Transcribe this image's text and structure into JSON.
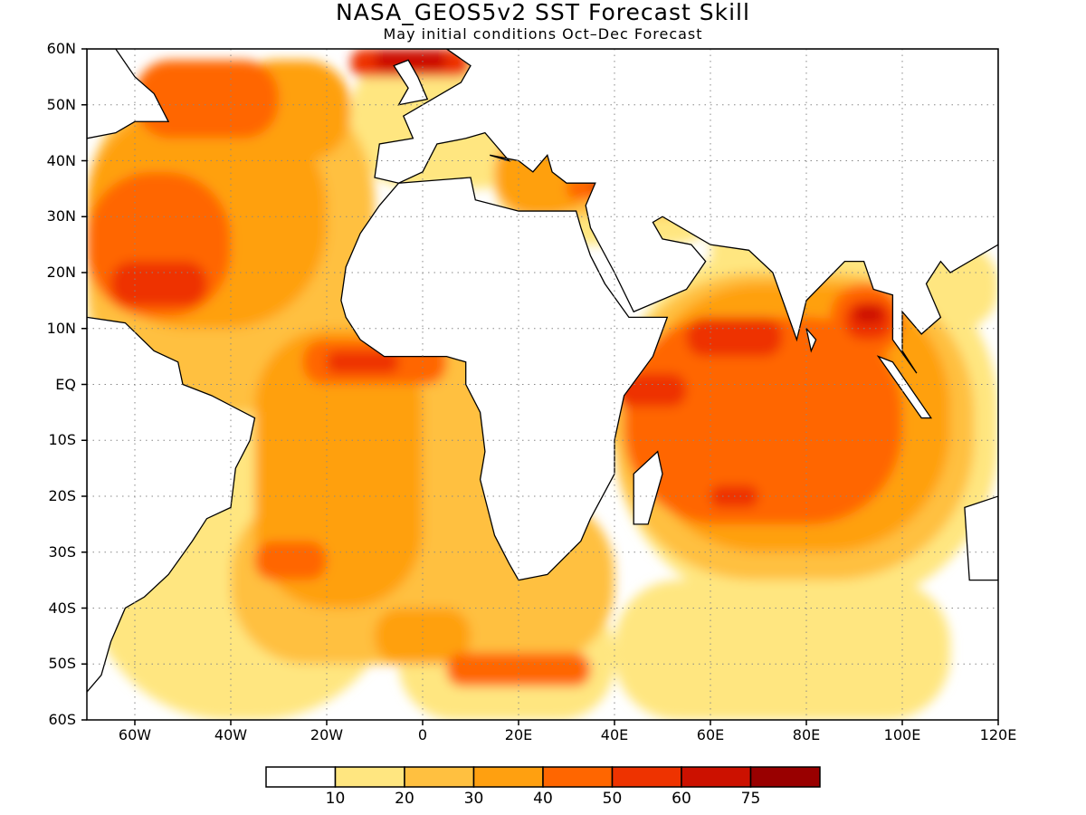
{
  "title": "NASA_GEOS5v2 SST Forecast Skill",
  "subtitle": "May initial conditions  Oct–Dec Forecast",
  "axes": {
    "lat_labels": [
      "60N",
      "50N",
      "40N",
      "30N",
      "20N",
      "10N",
      "EQ",
      "10S",
      "20S",
      "30S",
      "40S",
      "50S",
      "60S"
    ],
    "lon_labels": [
      "60W",
      "40W",
      "20W",
      "0",
      "20E",
      "40E",
      "60E",
      "80E",
      "100E",
      "120E"
    ]
  },
  "colorbar": {
    "labels": [
      "10",
      "20",
      "30",
      "40",
      "50",
      "60",
      "75"
    ],
    "colors": [
      "#ffffff",
      "#ffe680",
      "#ffc040",
      "#ffa010",
      "#ff6600",
      "#ee3300",
      "#cc1100",
      "#990000"
    ]
  },
  "chart_data": {
    "type": "heatmap",
    "title": "NASA_GEOS5v2 SST Forecast Skill",
    "subtitle": "May initial conditions  Oct–Dec Forecast",
    "xlim": [
      "70W",
      "120E"
    ],
    "ylim": [
      "60S",
      "60N"
    ],
    "levels": [
      10,
      20,
      30,
      40,
      50,
      60,
      75
    ],
    "grid": true
  }
}
